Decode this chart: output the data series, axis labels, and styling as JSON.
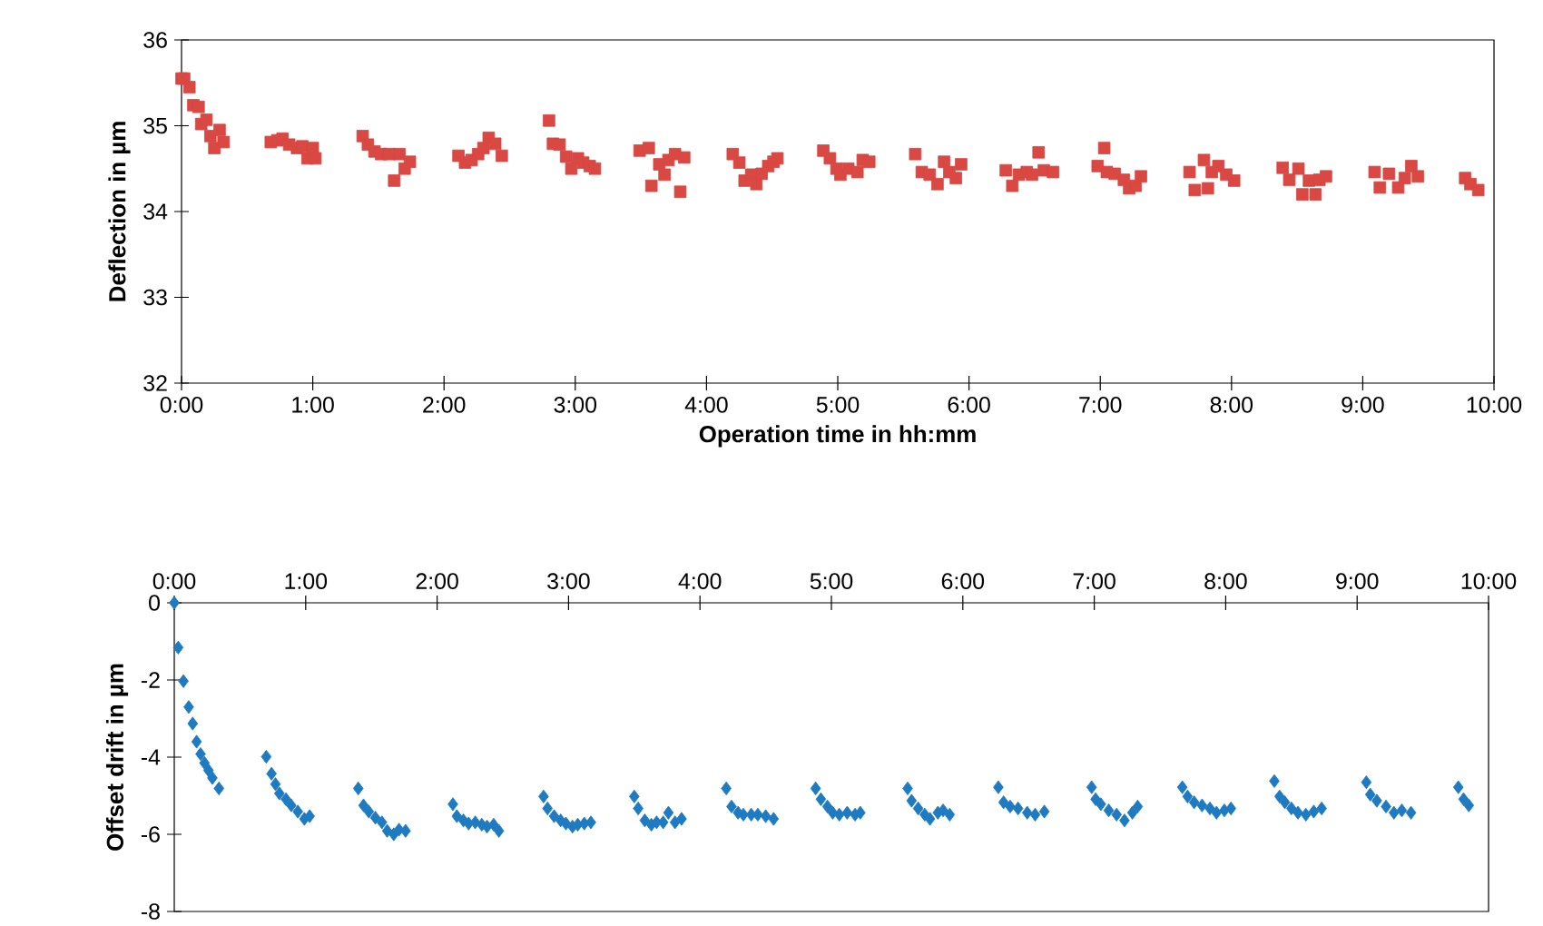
{
  "chart_data": [
    {
      "type": "scatter",
      "xlabel": "Operation time in hh:mm",
      "ylabel": "Deflection in µm",
      "color": "#d94843",
      "marker": "square",
      "xlim": [
        0,
        10
      ],
      "xticks": [
        {
          "value": 0,
          "label": "0:00"
        },
        {
          "value": 1,
          "label": "1:00"
        },
        {
          "value": 2,
          "label": "2:00"
        },
        {
          "value": 3,
          "label": "3:00"
        },
        {
          "value": 4,
          "label": "4:00"
        },
        {
          "value": 5,
          "label": "5:00"
        },
        {
          "value": 6,
          "label": "6:00"
        },
        {
          "value": 7,
          "label": "7:00"
        },
        {
          "value": 8,
          "label": "8:00"
        },
        {
          "value": 9,
          "label": "9:00"
        },
        {
          "value": 10,
          "label": "10:00"
        }
      ],
      "ylim": [
        32,
        36
      ],
      "yticks": [
        32,
        33,
        34,
        35,
        36
      ],
      "x": [
        0.0,
        0.02,
        0.06,
        0.09,
        0.13,
        0.15,
        0.19,
        0.22,
        0.25,
        0.29,
        0.32,
        0.68,
        0.73,
        0.77,
        0.82,
        0.88,
        0.92,
        0.96,
        1.0,
        1.02,
        1.38,
        1.42,
        1.47,
        1.52,
        1.58,
        1.62,
        1.66,
        1.7,
        1.74,
        2.11,
        2.16,
        2.21,
        2.26,
        2.3,
        2.34,
        2.39,
        2.44,
        2.8,
        2.83,
        2.88,
        2.93,
        2.97,
        3.02,
        3.06,
        3.11,
        3.15,
        3.49,
        3.56,
        3.58,
        3.64,
        3.68,
        3.71,
        3.76,
        3.8,
        3.83,
        4.2,
        4.25,
        4.29,
        4.34,
        4.38,
        4.42,
        4.47,
        4.51,
        4.54,
        4.89,
        4.94,
        4.99,
        5.02,
        5.08,
        5.15,
        5.19,
        5.24,
        5.59,
        5.64,
        5.7,
        5.76,
        5.81,
        5.85,
        5.9,
        5.94,
        6.28,
        6.33,
        6.38,
        6.44,
        6.48,
        6.53,
        6.57,
        6.64,
        6.98,
        7.03,
        7.05,
        7.11,
        7.18,
        7.22,
        7.27,
        7.31,
        7.68,
        7.72,
        7.79,
        7.82,
        7.85,
        7.9,
        7.96,
        8.02,
        8.39,
        8.44,
        8.51,
        8.54,
        8.59,
        8.64,
        8.67,
        8.72,
        9.09,
        9.13,
        9.2,
        9.27,
        9.32,
        9.37,
        9.42,
        9.78,
        9.82,
        9.88
      ],
      "values": [
        35.55,
        35.55,
        35.45,
        35.24,
        35.22,
        35.02,
        35.07,
        34.88,
        34.74,
        34.95,
        34.81,
        34.81,
        34.83,
        34.85,
        34.78,
        34.74,
        34.76,
        34.62,
        34.74,
        34.62,
        34.88,
        34.78,
        34.7,
        34.67,
        34.67,
        34.36,
        34.67,
        34.5,
        34.58,
        34.65,
        34.57,
        34.6,
        34.67,
        34.74,
        34.86,
        34.79,
        34.65,
        35.06,
        34.79,
        34.78,
        34.64,
        34.5,
        34.62,
        34.57,
        34.53,
        34.5,
        34.71,
        34.74,
        34.3,
        34.55,
        34.43,
        34.6,
        34.67,
        34.23,
        34.63,
        34.67,
        34.57,
        34.36,
        34.43,
        34.32,
        34.44,
        34.53,
        34.58,
        34.62,
        34.71,
        34.62,
        34.5,
        34.43,
        34.5,
        34.46,
        34.6,
        34.58,
        34.67,
        34.46,
        34.43,
        34.32,
        34.58,
        34.46,
        34.39,
        34.55,
        34.48,
        34.3,
        34.43,
        34.46,
        34.43,
        34.69,
        34.48,
        34.46,
        34.53,
        34.74,
        34.46,
        34.44,
        34.37,
        34.27,
        34.3,
        34.41,
        34.46,
        34.25,
        34.6,
        34.27,
        34.46,
        34.53,
        34.43,
        34.36,
        34.51,
        34.37,
        34.5,
        34.2,
        34.36,
        34.2,
        34.37,
        34.41,
        34.46,
        34.28,
        34.44,
        34.28,
        34.39,
        34.53,
        34.41,
        34.39,
        34.32,
        34.25
      ]
    },
    {
      "type": "scatter",
      "ylabel": "Offset drift in µm",
      "color": "#1f7bc1",
      "marker": "diamond",
      "xlim": [
        0,
        10
      ],
      "xticks": [
        {
          "value": 0,
          "label": "0:00"
        },
        {
          "value": 1,
          "label": "1:00"
        },
        {
          "value": 2,
          "label": "2:00"
        },
        {
          "value": 3,
          "label": "3:00"
        },
        {
          "value": 4,
          "label": "4:00"
        },
        {
          "value": 5,
          "label": "5:00"
        },
        {
          "value": 6,
          "label": "6:00"
        },
        {
          "value": 7,
          "label": "7:00"
        },
        {
          "value": 8,
          "label": "8:00"
        },
        {
          "value": 9,
          "label": "9:00"
        },
        {
          "value": 10,
          "label": "10:00"
        }
      ],
      "ylim": [
        -8,
        0
      ],
      "yticks": [
        -8,
        -6,
        -4,
        -2,
        0
      ],
      "x": [
        0,
        0.03,
        0.07,
        0.11,
        0.14,
        0.17,
        0.2,
        0.23,
        0.26,
        0.29,
        0.34,
        0.7,
        0.74,
        0.77,
        0.8,
        0.85,
        0.89,
        0.94,
        0.99,
        1.03,
        1.4,
        1.44,
        1.48,
        1.53,
        1.58,
        1.62,
        1.67,
        1.71,
        1.76,
        2.12,
        2.15,
        2.2,
        2.24,
        2.29,
        2.34,
        2.38,
        2.43,
        2.47,
        2.81,
        2.84,
        2.89,
        2.94,
        2.98,
        3.03,
        3.07,
        3.12,
        3.17,
        3.5,
        3.53,
        3.58,
        3.63,
        3.67,
        3.72,
        3.76,
        3.81,
        3.86,
        4.2,
        4.24,
        4.29,
        4.33,
        4.39,
        4.44,
        4.5,
        4.56,
        4.88,
        4.92,
        4.97,
        5.01,
        5.06,
        5.12,
        5.18,
        5.22,
        5.58,
        5.61,
        5.66,
        5.71,
        5.75,
        5.81,
        5.85,
        5.9,
        6.27,
        6.31,
        6.36,
        6.42,
        6.49,
        6.55,
        6.62,
        6.98,
        7.01,
        7.05,
        7.11,
        7.17,
        7.23,
        7.29,
        7.33,
        7.67,
        7.71,
        7.76,
        7.82,
        7.88,
        7.93,
        7.99,
        8.04,
        8.37,
        8.41,
        8.45,
        8.5,
        8.55,
        8.61,
        8.67,
        8.73,
        9.07,
        9.1,
        9.15,
        9.22,
        9.28,
        9.34,
        9.41,
        9.77,
        9.81,
        9.85
      ],
      "values": [
        0,
        -1.16,
        -2.03,
        -2.7,
        -3.13,
        -3.6,
        -3.92,
        -4.15,
        -4.34,
        -4.54,
        -4.81,
        -3.99,
        -4.43,
        -4.7,
        -4.94,
        -5.09,
        -5.25,
        -5.41,
        -5.6,
        -5.53,
        -4.81,
        -5.25,
        -5.41,
        -5.57,
        -5.69,
        -5.91,
        -6.0,
        -5.88,
        -5.91,
        -5.22,
        -5.53,
        -5.64,
        -5.72,
        -5.69,
        -5.75,
        -5.8,
        -5.75,
        -5.91,
        -5.02,
        -5.33,
        -5.53,
        -5.64,
        -5.72,
        -5.8,
        -5.75,
        -5.72,
        -5.69,
        -5.02,
        -5.33,
        -5.64,
        -5.75,
        -5.69,
        -5.69,
        -5.44,
        -5.69,
        -5.6,
        -4.81,
        -5.28,
        -5.44,
        -5.49,
        -5.49,
        -5.49,
        -5.53,
        -5.6,
        -4.81,
        -5.09,
        -5.28,
        -5.44,
        -5.49,
        -5.44,
        -5.49,
        -5.44,
        -4.81,
        -5.13,
        -5.33,
        -5.49,
        -5.6,
        -5.44,
        -5.38,
        -5.49,
        -4.78,
        -5.17,
        -5.28,
        -5.33,
        -5.44,
        -5.49,
        -5.41,
        -4.78,
        -5.09,
        -5.22,
        -5.38,
        -5.49,
        -5.64,
        -5.44,
        -5.28,
        -4.78,
        -5.02,
        -5.17,
        -5.25,
        -5.33,
        -5.44,
        -5.38,
        -5.33,
        -4.62,
        -5.02,
        -5.17,
        -5.33,
        -5.44,
        -5.49,
        -5.41,
        -5.33,
        -4.65,
        -4.97,
        -5.13,
        -5.28,
        -5.44,
        -5.38,
        -5.44,
        -4.78,
        -5.09,
        -5.25
      ]
    }
  ]
}
